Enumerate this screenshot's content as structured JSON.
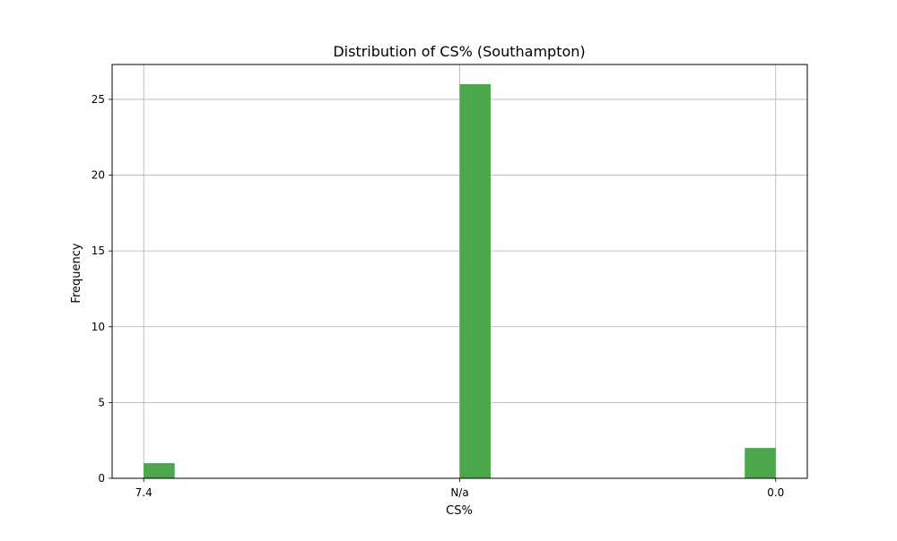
{
  "chart_data": {
    "type": "bar",
    "title": "Distribution of CS% (Southampton)",
    "xlabel": "CS%",
    "ylabel": "Frequency",
    "categories": [
      "7.4",
      "N/a",
      "0.0"
    ],
    "x_positions": [
      0,
      1,
      2
    ],
    "values": [
      1,
      26,
      2
    ],
    "bar_color": "#4ca64c",
    "xlim": [
      -0.1,
      2.1
    ],
    "ylim": [
      0,
      27.3
    ],
    "yticks": [
      0,
      5,
      10,
      15,
      20,
      25
    ],
    "grid": true,
    "legend": "none"
  }
}
